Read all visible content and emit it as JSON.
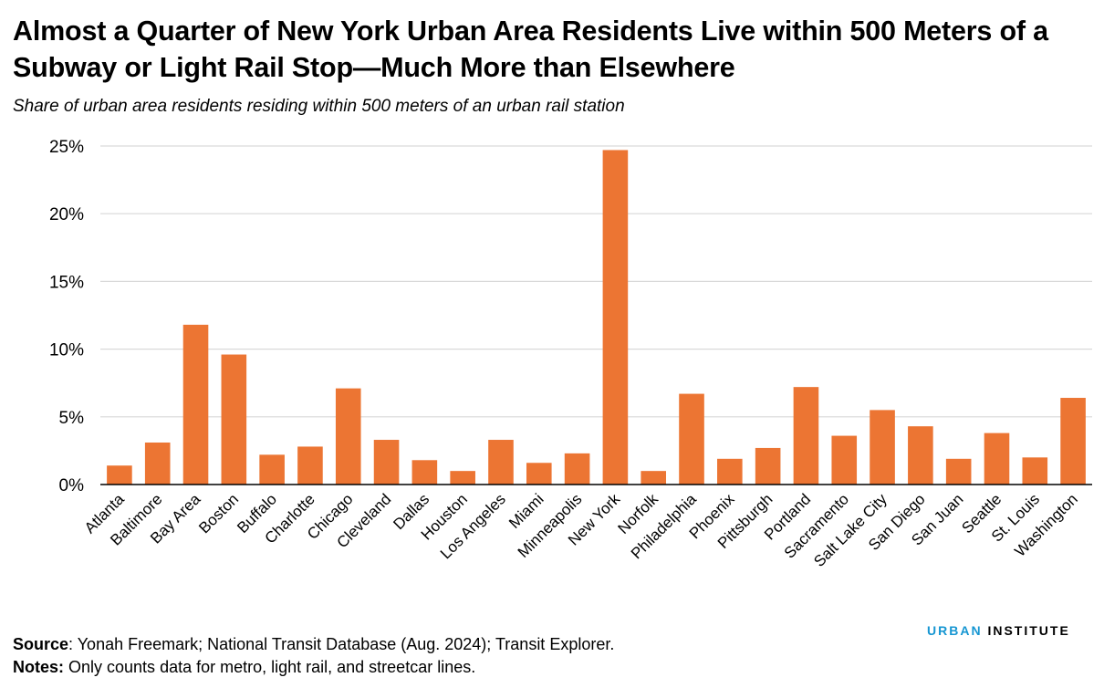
{
  "header": {
    "title": "Almost a Quarter of New York Urban Area Residents Live within 500 Meters of a Subway or Light Rail Stop—Much More than Elsewhere",
    "subtitle": "Share of urban area residents residing within 500 meters of an urban rail station"
  },
  "footer": {
    "source_lead": "Source",
    "source_text": ": Yonah Freemark; National Transit Database (Aug. 2024); Transit Explorer.",
    "notes_lead": "Notes:",
    "notes_text": " Only counts data for metro, light rail, and streetcar lines."
  },
  "logo": {
    "part1": "URBAN",
    "part2": "INSTITUTE"
  },
  "colors": {
    "bar": "#ec7533",
    "grid": "#d9d9d9",
    "axis": "#000000",
    "logo_accent": "#1696d2"
  },
  "chart_data": {
    "type": "bar",
    "title": "Almost a Quarter of New York Urban Area Residents Live within 500 Meters of a Subway or Light Rail Stop—Much More than Elsewhere",
    "subtitle": "Share of urban area residents residing within 500 meters of an urban rail station",
    "xlabel": "",
    "ylabel": "",
    "ylim": [
      0,
      25
    ],
    "yticks": [
      0,
      5,
      10,
      15,
      20,
      25
    ],
    "ytick_labels": [
      "0%",
      "5%",
      "10%",
      "15%",
      "20%",
      "25%"
    ],
    "grid": true,
    "legend": "none",
    "categories": [
      "Atlanta",
      "Baltimore",
      "Bay Area",
      "Boston",
      "Buffalo",
      "Charlotte",
      "Chicago",
      "Cleveland",
      "Dallas",
      "Houston",
      "Los Angeles",
      "Miami",
      "Minneapolis",
      "New York",
      "Norfolk",
      "Philadelphia",
      "Phoenix",
      "Pittsburgh",
      "Portland",
      "Sacramento",
      "Salt Lake City",
      "San Diego",
      "San Juan",
      "Seattle",
      "St. Louis",
      "Washington"
    ],
    "values": [
      1.4,
      3.1,
      11.8,
      9.6,
      2.2,
      2.8,
      7.1,
      3.3,
      1.8,
      1.0,
      3.3,
      1.6,
      2.3,
      24.7,
      1.0,
      6.7,
      1.9,
      2.7,
      7.2,
      3.6,
      5.5,
      4.3,
      1.9,
      3.8,
      2.0,
      6.4
    ]
  }
}
